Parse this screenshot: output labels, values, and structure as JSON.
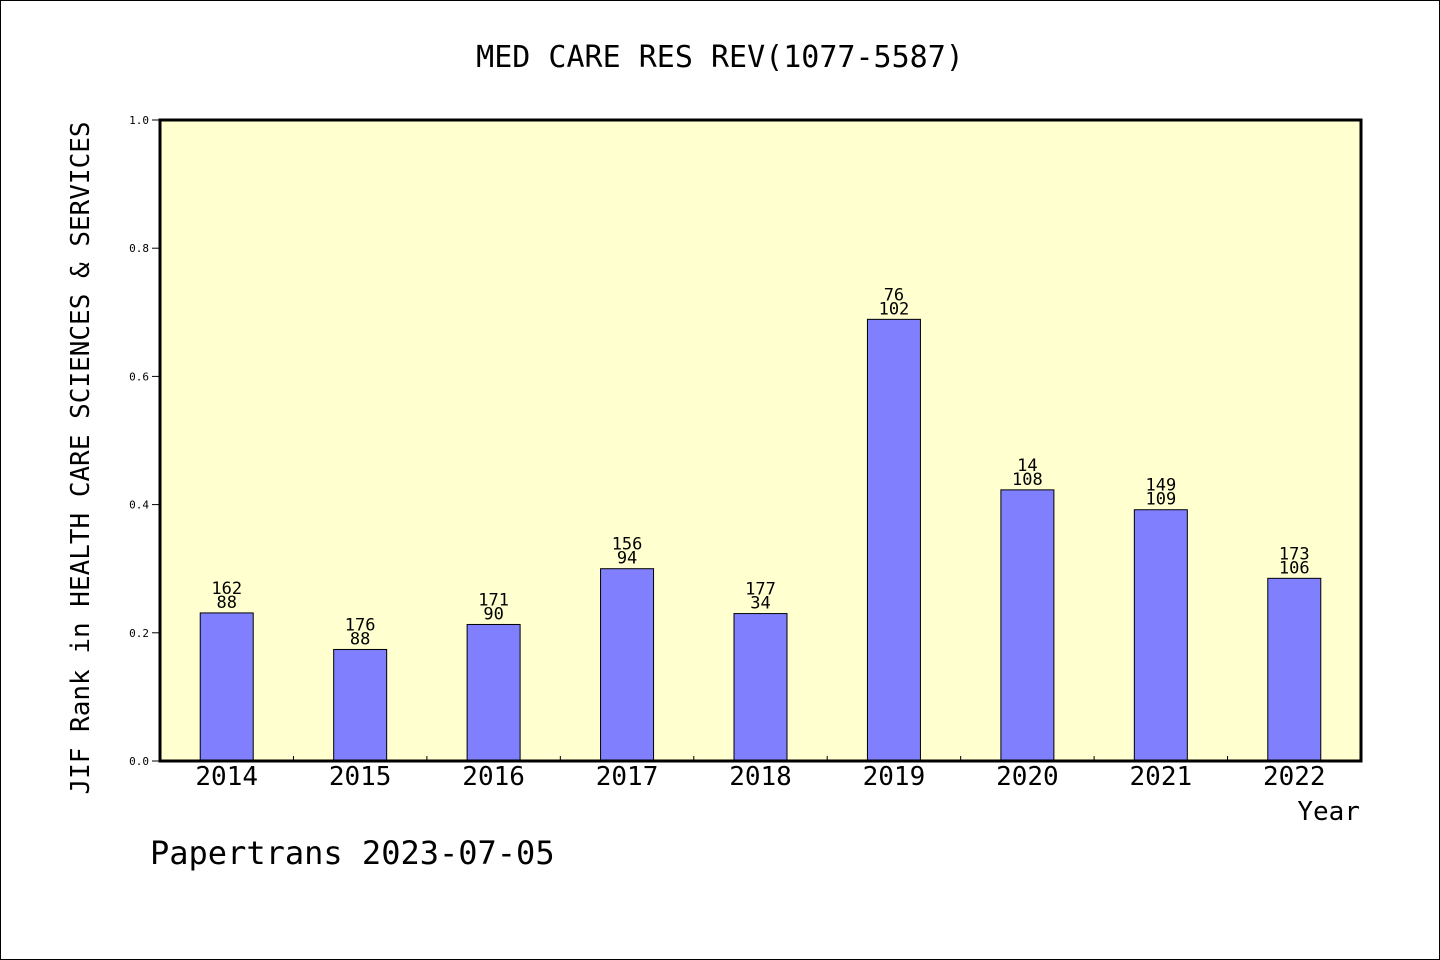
{
  "chart_data": {
    "type": "bar",
    "title": "MED CARE RES REV(1077-5587)",
    "xlabel": "Year",
    "ylabel": "JIF Rank in HEALTH CARE SCIENCES & SERVICES",
    "ylim": [
      0,
      1.0
    ],
    "yticks": [
      "0.0",
      "0.2",
      "0.4",
      "0.6",
      "0.8",
      "1.0"
    ],
    "categories": [
      "2014",
      "2015",
      "2016",
      "2017",
      "2018",
      "2019",
      "2020",
      "2021",
      "2022"
    ],
    "values": [
      0.231,
      0.174,
      0.213,
      0.3,
      0.23,
      0.689,
      0.423,
      0.392,
      0.285
    ],
    "label_top": [
      "162",
      "176",
      "171",
      "156",
      "177",
      "76",
      "14",
      "149",
      "173"
    ],
    "label_bottom": [
      "88",
      "88",
      "90",
      "94",
      "34",
      "102",
      "108",
      "109",
      "106"
    ],
    "grid": false,
    "colors": {
      "bar": "#8080ff",
      "plot_background": "#ffffd0",
      "axis": "#000000"
    }
  },
  "footer": {
    "watermark": "Papertrans 2023-07-05"
  }
}
